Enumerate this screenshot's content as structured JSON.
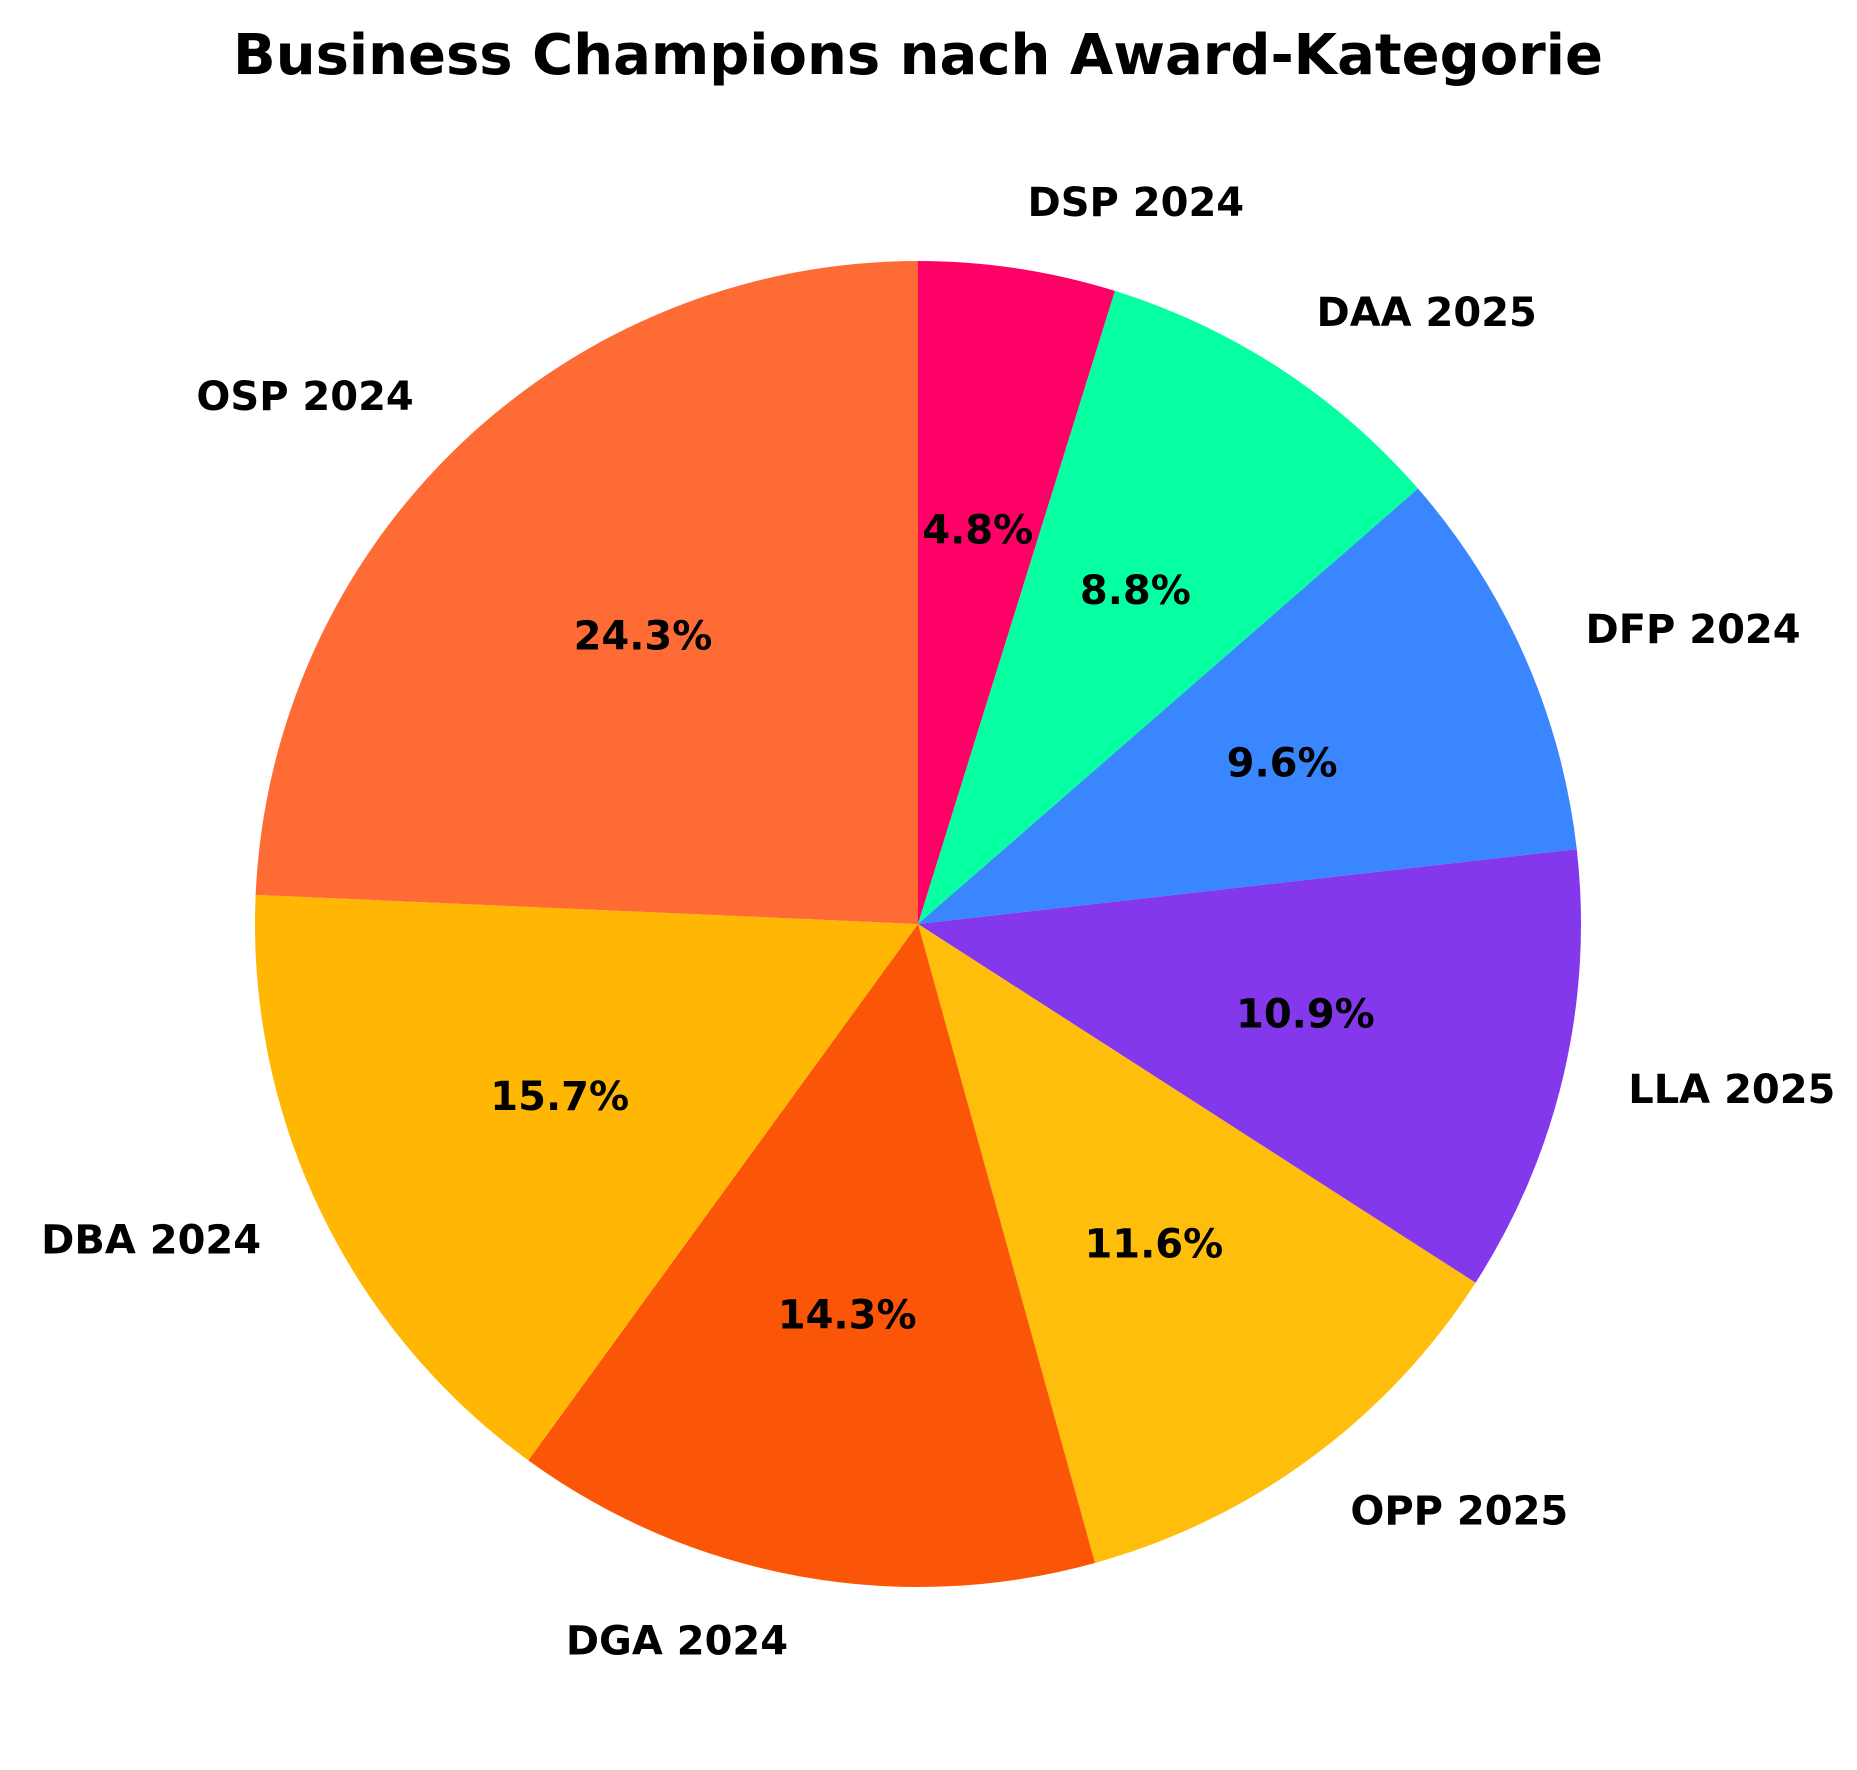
{
  "chart_data": {
    "type": "pie",
    "title": "Business Champions nach Award-Kategorie",
    "start_angle_deg": 90,
    "direction": "clockwise",
    "slices": [
      {
        "label": "DSP 2024",
        "value": 4.8,
        "pct_label": "4.8%",
        "color": "#FF0066"
      },
      {
        "label": "DAA 2025",
        "value": 8.8,
        "pct_label": "8.8%",
        "color": "#05FFA1"
      },
      {
        "label": "DFP 2024",
        "value": 9.6,
        "pct_label": "9.6%",
        "color": "#3A86FF"
      },
      {
        "label": "LLA 2025",
        "value": 10.9,
        "pct_label": "10.9%",
        "color": "#8338EC"
      },
      {
        "label": "OPP 2025",
        "value": 11.6,
        "pct_label": "11.6%",
        "color": "#FFBE0B"
      },
      {
        "label": "DGA 2024",
        "value": 14.3,
        "pct_label": "14.3%",
        "color": "#FB5607"
      },
      {
        "label": "DBA 2024",
        "value": 15.7,
        "pct_label": "15.7%",
        "color": "#FFB703"
      },
      {
        "label": "OSP 2024",
        "value": 24.3,
        "pct_label": "24.3%",
        "color": "#FF6B35"
      }
    ]
  }
}
